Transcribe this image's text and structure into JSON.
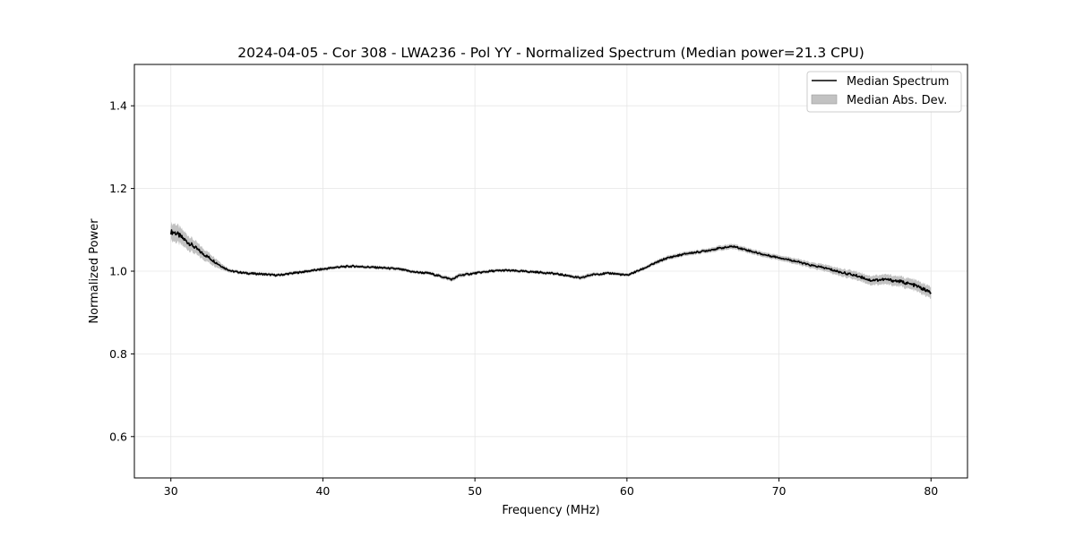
{
  "chart_data": {
    "type": "line",
    "title": "2024-04-05 - Cor 308 - LWA236 - Pol YY - Normalized Spectrum (Median power=21.3 CPU)",
    "xlabel": "Frequency (MHz)",
    "ylabel": "Normalized Power",
    "xlim": [
      27.6,
      82.4
    ],
    "ylim": [
      0.5,
      1.5
    ],
    "xticks": [
      30,
      40,
      50,
      60,
      70,
      80
    ],
    "yticks": [
      0.6,
      0.8,
      1.0,
      1.2,
      1.4
    ],
    "xtick_labels": [
      "30",
      "40",
      "50",
      "60",
      "70",
      "80"
    ],
    "ytick_labels": [
      "0.6",
      "0.8",
      "1.0",
      "1.2",
      "1.4"
    ],
    "grid": true,
    "legend_position": "top-right",
    "legend": {
      "median_label": "Median Spectrum",
      "mad_label": "Median Abs. Dev."
    },
    "colors": {
      "line": "#000000",
      "band": "#b3b3b3",
      "grid": "#e6e6e6"
    },
    "series": [
      {
        "name": "Median Spectrum",
        "x": [
          30,
          30.3,
          30.6,
          31,
          31.5,
          32,
          32.5,
          33,
          33.5,
          34,
          35,
          36,
          37,
          38,
          39,
          40,
          41,
          42,
          43,
          44,
          45,
          46,
          47,
          48,
          48.5,
          49,
          50,
          51,
          52,
          53,
          54,
          55,
          56,
          57,
          57.5,
          58,
          59,
          60,
          61,
          62,
          62.5,
          63,
          64,
          65,
          66,
          67,
          68,
          68.5,
          69,
          70,
          71,
          72,
          73,
          74,
          75,
          75.5,
          76,
          77,
          78,
          79,
          80
        ],
        "y": [
          1.095,
          1.093,
          1.085,
          1.073,
          1.06,
          1.045,
          1.033,
          1.02,
          1.008,
          1.0,
          0.995,
          0.993,
          0.99,
          0.995,
          1.0,
          1.005,
          1.01,
          1.012,
          1.01,
          1.008,
          1.005,
          0.998,
          0.995,
          0.985,
          0.98,
          0.99,
          0.995,
          1.0,
          1.002,
          1.0,
          0.998,
          0.995,
          0.99,
          0.983,
          0.99,
          0.993,
          0.995,
          0.99,
          1.005,
          1.022,
          1.03,
          1.035,
          1.043,
          1.048,
          1.055,
          1.06,
          1.05,
          1.045,
          1.04,
          1.033,
          1.025,
          1.015,
          1.008,
          0.998,
          0.99,
          0.985,
          0.978,
          0.98,
          0.975,
          0.965,
          0.948
        ]
      },
      {
        "name": "Median Abs. Dev.",
        "x": [
          30,
          30.3,
          30.6,
          31,
          31.5,
          32,
          32.5,
          33,
          33.5,
          34,
          35,
          36,
          37,
          38,
          39,
          40,
          41,
          42,
          43,
          44,
          45,
          46,
          47,
          48,
          48.5,
          49,
          50,
          51,
          52,
          53,
          54,
          55,
          56,
          57,
          57.5,
          58,
          59,
          60,
          61,
          62,
          62.5,
          63,
          64,
          65,
          66,
          67,
          68,
          68.5,
          69,
          70,
          71,
          72,
          73,
          74,
          75,
          75.5,
          76,
          77,
          78,
          79,
          80
        ],
        "dev": [
          0.02,
          0.022,
          0.02,
          0.018,
          0.016,
          0.014,
          0.012,
          0.01,
          0.006,
          0.004,
          0.004,
          0.004,
          0.004,
          0.004,
          0.004,
          0.004,
          0.004,
          0.004,
          0.004,
          0.004,
          0.004,
          0.004,
          0.004,
          0.005,
          0.005,
          0.005,
          0.004,
          0.004,
          0.004,
          0.004,
          0.004,
          0.004,
          0.004,
          0.005,
          0.005,
          0.004,
          0.004,
          0.004,
          0.004,
          0.005,
          0.005,
          0.005,
          0.005,
          0.005,
          0.006,
          0.006,
          0.006,
          0.006,
          0.006,
          0.006,
          0.007,
          0.007,
          0.008,
          0.009,
          0.01,
          0.01,
          0.011,
          0.012,
          0.012,
          0.013,
          0.014
        ]
      }
    ]
  }
}
